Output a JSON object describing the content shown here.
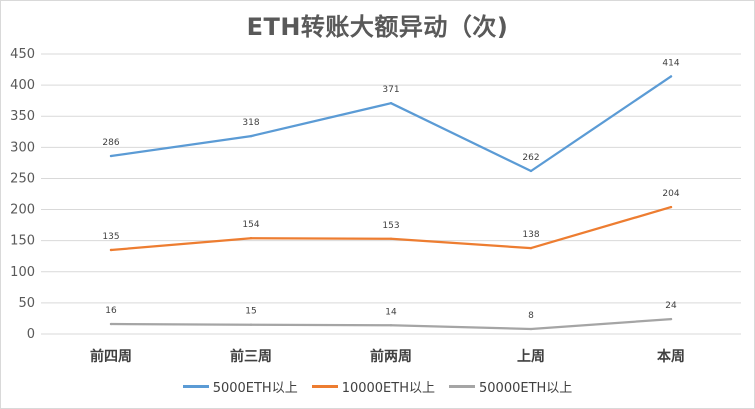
{
  "chart_data": {
    "type": "line",
    "title": "ETH转账大额异动（次)",
    "categories": [
      "前四周",
      "前三周",
      "前两周",
      "上周",
      "本周"
    ],
    "ylim": [
      0,
      450
    ],
    "yticks": [
      0,
      50,
      100,
      150,
      200,
      250,
      300,
      350,
      400,
      450
    ],
    "grid": true,
    "legend_position": "bottom",
    "series": [
      {
        "name": "5000ETH以上",
        "color": "#5b9bd5",
        "values": [
          286,
          318,
          371,
          262,
          414
        ]
      },
      {
        "name": "10000ETH以上",
        "color": "#ed7d31",
        "values": [
          135,
          154,
          153,
          138,
          204
        ]
      },
      {
        "name": "50000ETH以上",
        "color": "#a5a5a5",
        "values": [
          16,
          15,
          14,
          8,
          24
        ]
      }
    ]
  }
}
